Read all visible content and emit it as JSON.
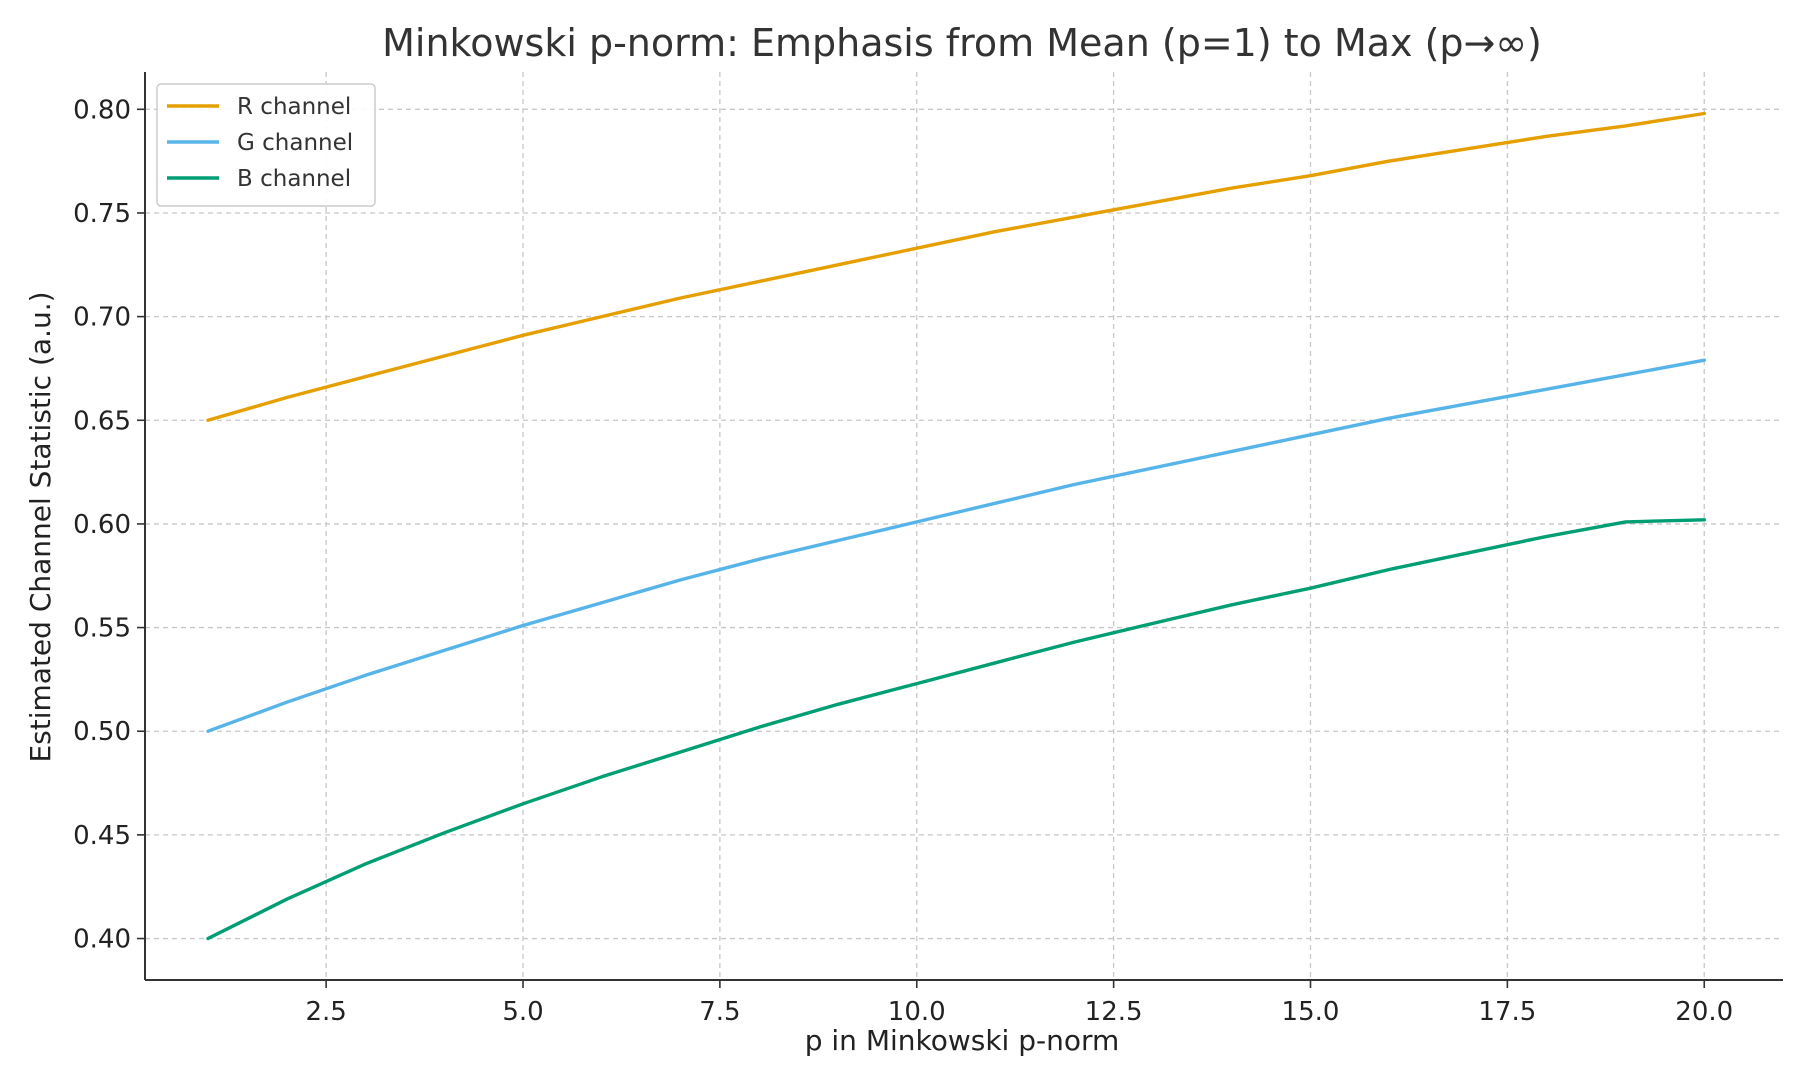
{
  "chart_data": {
    "type": "line",
    "title": "Minkowski p-norm: Emphasis from Mean (p=1) to Max (p→∞)",
    "xlabel": "p in Minkowski p-norm",
    "ylabel": "Estimated Channel Statistic (a.u.)",
    "xlim": [
      0.2,
      21.0
    ],
    "ylim": [
      0.38,
      0.818
    ],
    "x_ticks": [
      2.5,
      5.0,
      7.5,
      10.0,
      12.5,
      15.0,
      17.5,
      20.0
    ],
    "x_tick_labels": [
      "2.5",
      "5.0",
      "7.5",
      "10.0",
      "12.5",
      "15.0",
      "17.5",
      "20.0"
    ],
    "y_ticks": [
      0.4,
      0.45,
      0.5,
      0.55,
      0.6,
      0.65,
      0.7,
      0.75,
      0.8
    ],
    "y_tick_labels": [
      "0.40",
      "0.45",
      "0.50",
      "0.55",
      "0.60",
      "0.65",
      "0.70",
      "0.75",
      "0.80"
    ],
    "grid": true,
    "legend_position": "top-left",
    "x": [
      1,
      2,
      3,
      4,
      5,
      6,
      7,
      8,
      9,
      10,
      11,
      12,
      13,
      14,
      15,
      16,
      17,
      18,
      19,
      20
    ],
    "series": [
      {
        "name": "R channel",
        "color": "#E69F00",
        "values": [
          0.65,
          0.661,
          0.671,
          0.681,
          0.691,
          0.7,
          0.709,
          0.717,
          0.725,
          0.733,
          0.741,
          0.748,
          0.755,
          0.762,
          0.768,
          0.775,
          0.781,
          0.787,
          0.792,
          0.798
        ]
      },
      {
        "name": "G channel",
        "color": "#56B4E9",
        "values": [
          0.5,
          0.514,
          0.527,
          0.539,
          0.551,
          0.562,
          0.573,
          0.583,
          0.592,
          0.601,
          0.61,
          0.619,
          0.627,
          0.635,
          0.643,
          0.651,
          0.658,
          0.665,
          0.672,
          0.679
        ]
      },
      {
        "name": "B channel",
        "color": "#009E73",
        "values": [
          0.4,
          0.419,
          0.436,
          0.451,
          0.465,
          0.478,
          0.49,
          0.502,
          0.513,
          0.523,
          0.533,
          0.543,
          0.552,
          0.561,
          0.569,
          0.578,
          0.586,
          0.594,
          0.601,
          0.602
        ]
      }
    ]
  }
}
